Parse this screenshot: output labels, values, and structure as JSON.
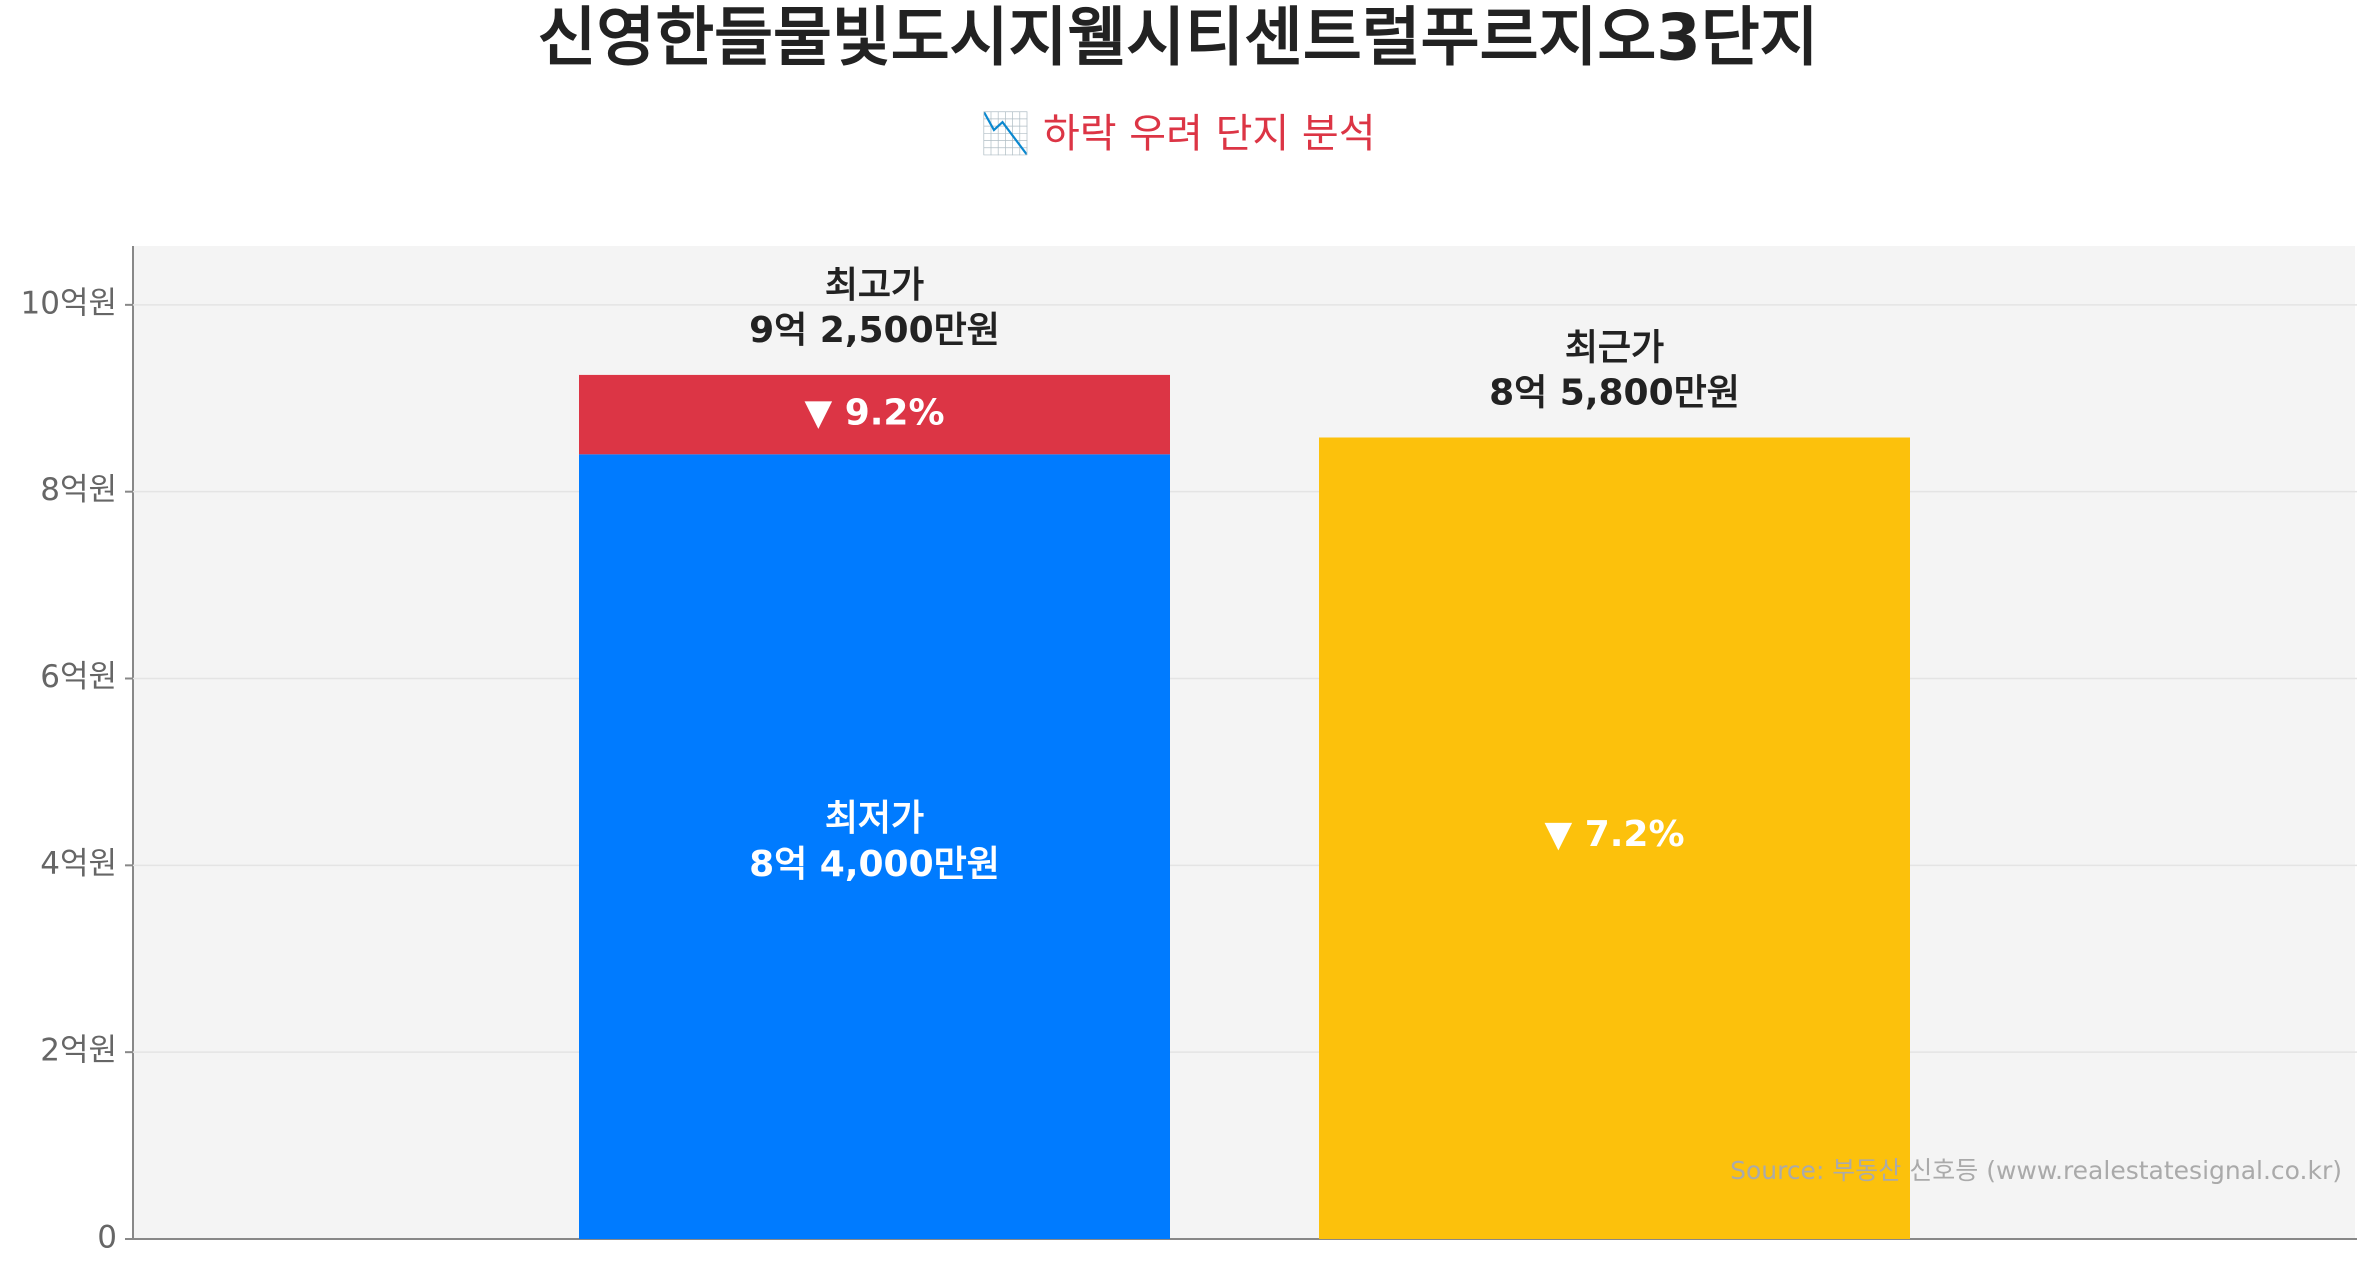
{
  "chart_data": {
    "type": "bar",
    "title": "신영한들물빛도시지웰시티센트럴푸르지오3단지",
    "subtitle": "📉 하락 우려 단지 분석",
    "source": "Source: 부동산 신호등 (www.realestatesignal.co.kr)",
    "ylim": [
      0,
      10.63
    ],
    "yticks": [
      0,
      {
        "value": 2,
        "label": "2억원"
      },
      {
        "value": 4,
        "label": "4억원"
      },
      {
        "value": 6,
        "label": "6억원"
      },
      {
        "value": 8,
        "label": "8억원"
      },
      {
        "value": 10,
        "label": "10억원"
      }
    ],
    "grid": true,
    "bars": [
      {
        "name": "최저가",
        "value": 8.4,
        "value_label": "8억 4,000만원",
        "color": "#007bff",
        "top_name": "최고가",
        "top_value": 9.25,
        "top_value_label": "9억 2,500만원",
        "top_color": "#dc3545",
        "drop": 9.2,
        "drop_label": "▼ 9.2%"
      },
      {
        "name": "최근가",
        "value": 8.58,
        "value_label": "8억 5,800만원",
        "color": "#fcc10c",
        "drop": 7.2,
        "drop_label": "▼ 7.2%"
      }
    ]
  }
}
